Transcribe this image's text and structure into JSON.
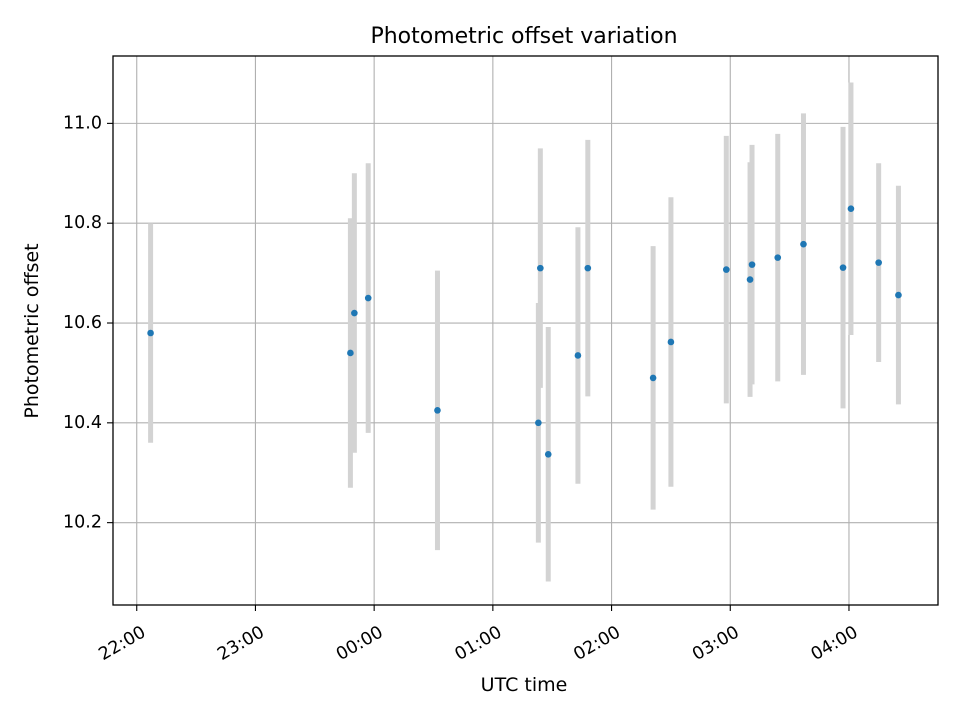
{
  "chart_data": {
    "type": "scatter",
    "title": "Photometric offset variation",
    "xlabel": "UTC time",
    "ylabel": "Photometric offset",
    "xlim": [
      "21:48",
      "04:45"
    ],
    "ylim": [
      10.035,
      11.135
    ],
    "x_ticks": [
      "22:00",
      "23:00",
      "00:00",
      "01:00",
      "02:00",
      "03:00",
      "04:00"
    ],
    "y_ticks": [
      10.2,
      10.4,
      10.6,
      10.8,
      11.0
    ],
    "y_tick_labels": [
      "10.2",
      "10.4",
      "10.6",
      "10.8",
      "11.0"
    ],
    "grid": true,
    "colors": {
      "point": "#1f77b4",
      "errorbar": "#d3d3d3",
      "grid": "#b0b0b0"
    },
    "points": [
      {
        "x": "22:07",
        "y": 10.58,
        "yerr": 0.22
      },
      {
        "x": "23:48",
        "y": 10.54,
        "yerr": 0.27
      },
      {
        "x": "23:50",
        "y": 10.62,
        "yerr": 0.28
      },
      {
        "x": "23:57",
        "y": 10.65,
        "yerr": 0.27
      },
      {
        "x": "00:32",
        "y": 10.425,
        "yerr": 0.28
      },
      {
        "x": "01:23",
        "y": 10.4,
        "yerr": 0.24
      },
      {
        "x": "01:24",
        "y": 10.71,
        "yerr": 0.24
      },
      {
        "x": "01:28",
        "y": 10.337,
        "yerr": 0.255
      },
      {
        "x": "01:43",
        "y": 10.535,
        "yerr": 0.257
      },
      {
        "x": "01:48",
        "y": 10.71,
        "yerr": 0.257
      },
      {
        "x": "02:21",
        "y": 10.49,
        "yerr": 0.264
      },
      {
        "x": "02:30",
        "y": 10.562,
        "yerr": 0.29
      },
      {
        "x": "02:58",
        "y": 10.707,
        "yerr": 0.268
      },
      {
        "x": "03:10",
        "y": 10.687,
        "yerr": 0.235
      },
      {
        "x": "03:11",
        "y": 10.717,
        "yerr": 0.24
      },
      {
        "x": "03:24",
        "y": 10.731,
        "yerr": 0.248
      },
      {
        "x": "03:37",
        "y": 10.758,
        "yerr": 0.262
      },
      {
        "x": "03:57",
        "y": 10.711,
        "yerr": 0.282
      },
      {
        "x": "04:01",
        "y": 10.829,
        "yerr": 0.253
      },
      {
        "x": "04:15",
        "y": 10.721,
        "yerr": 0.199
      },
      {
        "x": "04:25",
        "y": 10.656,
        "yerr": 0.219
      }
    ]
  }
}
